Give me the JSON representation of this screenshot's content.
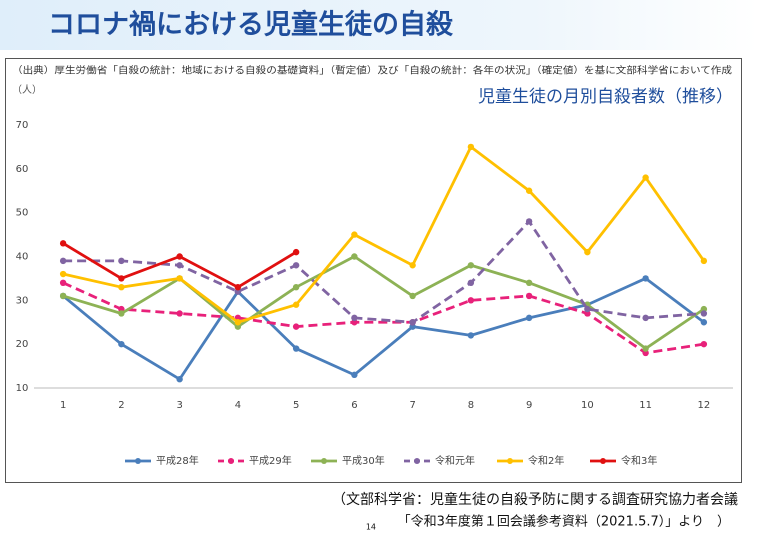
{
  "header": {
    "title": "コロナ禍における児童生徒の自殺"
  },
  "source": "（出典）厚生労働省「自殺の統計：地域における自殺の基礎資料」（暫定値）及び「自殺の統計：各年の状況」（確定値）を基に文部科学省において作成",
  "chart_data": {
    "type": "line",
    "title": "児童生徒の月別自殺者数（推移）",
    "y_label": "（人）",
    "categories": [
      "1",
      "2",
      "3",
      "4",
      "5",
      "6",
      "7",
      "8",
      "9",
      "10",
      "11",
      "12"
    ],
    "ylim": [
      10,
      70
    ],
    "yticks": [
      10,
      20,
      30,
      40,
      50,
      60,
      70
    ],
    "grid": false,
    "legend": "bottom",
    "series": [
      {
        "name": "平成28年",
        "color": "#4a7ebb",
        "dashed": false,
        "values": [
          31,
          20,
          12,
          32,
          19,
          13,
          24,
          22,
          26,
          29,
          35,
          25
        ]
      },
      {
        "name": "平成29年",
        "color": "#e8217a",
        "dashed": true,
        "values": [
          34,
          28,
          27,
          26,
          24,
          25,
          25,
          30,
          31,
          27,
          18,
          20
        ]
      },
      {
        "name": "平成30年",
        "color": "#8db255",
        "dashed": false,
        "values": [
          31,
          27,
          35,
          24,
          33,
          40,
          31,
          38,
          34,
          29,
          19,
          28
        ]
      },
      {
        "name": "令和元年",
        "color": "#8064a2",
        "dashed": true,
        "values": [
          39,
          39,
          38,
          32,
          38,
          26,
          25,
          34,
          48,
          28,
          26,
          27
        ]
      },
      {
        "name": "令和2年",
        "color": "#ffc000",
        "dashed": false,
        "values": [
          36,
          33,
          35,
          25,
          29,
          45,
          38,
          65,
          55,
          41,
          58,
          39
        ]
      },
      {
        "name": "令和3年",
        "color": "#e01010",
        "dashed": false,
        "values": [
          43,
          35,
          40,
          33,
          41,
          null,
          null,
          null,
          null,
          null,
          null,
          null
        ]
      }
    ]
  },
  "footer": {
    "line1": "（文部科学省：児童生徒の自殺予防に関する調査研究協力者会議",
    "line2": "「令和3年度第１回会議参考資料（2021.5.7）」より　）",
    "page": "14"
  }
}
